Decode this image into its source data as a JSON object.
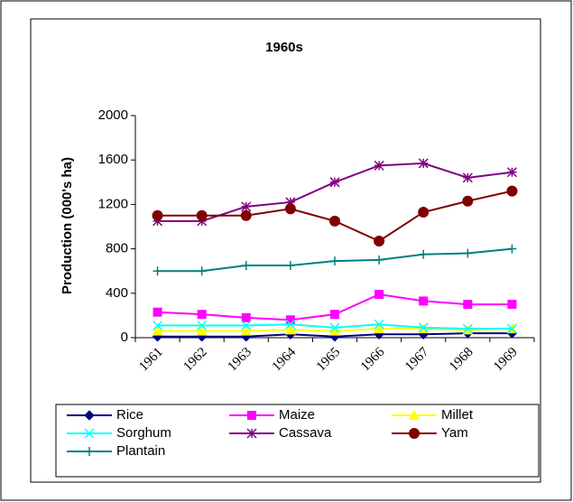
{
  "chart_data": {
    "type": "line",
    "title": "1960s",
    "y_label": "Production (000's ha)",
    "categories": [
      "1961",
      "1962",
      "1963",
      "1964",
      "1965",
      "1966",
      "1967",
      "1968",
      "1969"
    ],
    "series": [
      {
        "name": "Rice",
        "color": "#000080",
        "marker": "diamond",
        "values": [
          10,
          10,
          10,
          30,
          10,
          30,
          30,
          40,
          40
        ]
      },
      {
        "name": "Maize",
        "color": "#ff00ff",
        "marker": "square",
        "values": [
          230,
          210,
          180,
          160,
          210,
          390,
          330,
          300,
          300
        ]
      },
      {
        "name": "Millet",
        "color": "#ffff00",
        "marker": "triangle",
        "values": [
          60,
          60,
          60,
          70,
          60,
          80,
          80,
          70,
          80
        ]
      },
      {
        "name": "Sorghum",
        "color": "#00ffff",
        "marker": "x",
        "values": [
          110,
          110,
          110,
          120,
          90,
          120,
          90,
          80,
          80
        ]
      },
      {
        "name": "Cassava",
        "color": "#800080",
        "marker": "star",
        "values": [
          1050,
          1050,
          1180,
          1220,
          1400,
          1550,
          1570,
          1440,
          1490
        ]
      },
      {
        "name": "Yam",
        "color": "#800000",
        "marker": "circle",
        "values": [
          1100,
          1100,
          1100,
          1160,
          1050,
          870,
          1130,
          1230,
          1320
        ]
      },
      {
        "name": "Plantain",
        "color": "#008080",
        "marker": "plus",
        "values": [
          600,
          600,
          650,
          650,
          690,
          700,
          750,
          760,
          800
        ]
      }
    ],
    "ylim": [
      0,
      2000
    ],
    "yticks": [
      0,
      400,
      800,
      1200,
      1600,
      2000
    ],
    "grid": false,
    "legend": "bottom"
  }
}
